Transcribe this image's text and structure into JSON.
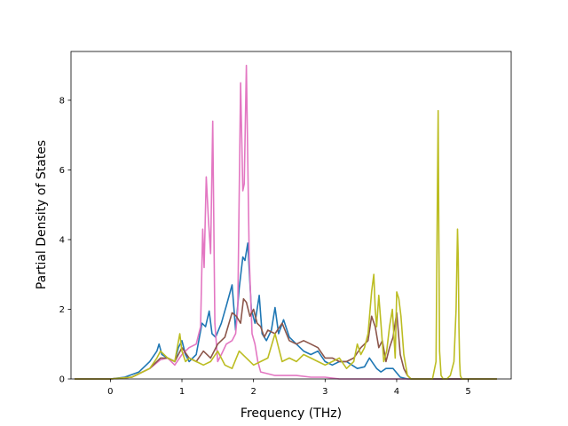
{
  "chart_data": {
    "type": "line",
    "title": "",
    "xlabel": "Frequency (THz)",
    "ylabel": "Partial Density of States",
    "xlim": [
      -0.55,
      5.6
    ],
    "ylim": [
      0,
      9.4
    ],
    "xticks": [
      0,
      1,
      2,
      3,
      4,
      5
    ],
    "yticks": [
      0,
      2,
      4,
      6,
      8
    ],
    "grid": false,
    "legend": "none",
    "series": [
      {
        "color": "#1f77b4",
        "x": [
          -0.5,
          0.0,
          0.2,
          0.4,
          0.55,
          0.65,
          0.68,
          0.72,
          0.8,
          0.9,
          0.95,
          1.0,
          1.05,
          1.1,
          1.2,
          1.28,
          1.33,
          1.38,
          1.42,
          1.47,
          1.55,
          1.62,
          1.7,
          1.75,
          1.8,
          1.85,
          1.88,
          1.92,
          1.97,
          2.02,
          2.08,
          2.12,
          2.18,
          2.25,
          2.3,
          2.35,
          2.42,
          2.5,
          2.6,
          2.7,
          2.8,
          2.9,
          3.0,
          3.1,
          3.2,
          3.3,
          3.45,
          3.55,
          3.62,
          3.67,
          3.72,
          3.78,
          3.85,
          3.95,
          4.05,
          4.15,
          5.4
        ],
        "y": [
          0,
          0,
          0.05,
          0.2,
          0.5,
          0.8,
          1.0,
          0.7,
          0.6,
          0.5,
          0.9,
          1.1,
          0.7,
          0.5,
          0.7,
          1.6,
          1.5,
          1.95,
          1.3,
          1.2,
          1.6,
          2.1,
          2.7,
          1.4,
          2.6,
          3.5,
          3.4,
          3.9,
          2.0,
          1.6,
          2.4,
          1.3,
          1.1,
          1.4,
          2.05,
          1.3,
          1.7,
          1.2,
          1.0,
          0.8,
          0.7,
          0.8,
          0.5,
          0.4,
          0.5,
          0.5,
          0.3,
          0.35,
          0.6,
          0.45,
          0.3,
          0.2,
          0.3,
          0.3,
          0.05,
          0,
          0
        ]
      },
      {
        "color": "#e377c2",
        "x": [
          -0.5,
          0.0,
          0.3,
          0.55,
          0.7,
          0.8,
          0.9,
          1.0,
          1.1,
          1.2,
          1.26,
          1.29,
          1.31,
          1.34,
          1.37,
          1.4,
          1.43,
          1.46,
          1.5,
          1.55,
          1.62,
          1.7,
          1.75,
          1.78,
          1.82,
          1.85,
          1.87,
          1.9,
          1.94,
          1.98,
          2.02,
          2.06,
          2.1,
          2.2,
          2.3,
          2.4,
          2.6,
          2.8,
          3.0,
          3.2,
          5.4
        ],
        "y": [
          0,
          0,
          0.05,
          0.3,
          0.55,
          0.6,
          0.4,
          0.7,
          0.9,
          1.0,
          1.5,
          4.3,
          3.2,
          5.8,
          4.6,
          3.6,
          7.4,
          1.6,
          0.5,
          0.7,
          1.0,
          1.1,
          1.3,
          2.0,
          8.5,
          5.4,
          5.6,
          9.0,
          3.5,
          1.3,
          1.0,
          0.5,
          0.2,
          0.15,
          0.1,
          0.1,
          0.1,
          0.05,
          0.05,
          0,
          0
        ]
      },
      {
        "color": "#8c564b",
        "x": [
          -0.5,
          0.0,
          0.3,
          0.55,
          0.7,
          0.8,
          0.9,
          1.0,
          1.1,
          1.2,
          1.3,
          1.4,
          1.5,
          1.6,
          1.7,
          1.76,
          1.82,
          1.86,
          1.9,
          1.95,
          2.0,
          2.05,
          2.1,
          2.15,
          2.2,
          2.3,
          2.4,
          2.5,
          2.6,
          2.7,
          2.8,
          2.9,
          3.0,
          3.1,
          3.2,
          3.3,
          3.4,
          3.5,
          3.6,
          3.65,
          3.7,
          3.75,
          3.8,
          3.85,
          3.9,
          3.95,
          4.0,
          4.05,
          4.1,
          4.15,
          4.2,
          5.4
        ],
        "y": [
          0,
          0,
          0.05,
          0.3,
          0.6,
          0.6,
          0.5,
          0.9,
          0.6,
          0.5,
          0.8,
          0.6,
          1.0,
          1.2,
          1.9,
          1.8,
          1.6,
          2.3,
          2.2,
          1.8,
          2.0,
          1.6,
          1.5,
          1.2,
          1.4,
          1.3,
          1.6,
          1.1,
          1.0,
          1.1,
          1.0,
          0.9,
          0.6,
          0.6,
          0.5,
          0.5,
          0.6,
          0.9,
          1.1,
          1.8,
          1.5,
          0.9,
          1.1,
          0.5,
          0.9,
          1.2,
          1.9,
          0.7,
          0.3,
          0.1,
          0,
          0
        ]
      },
      {
        "color": "#bcbd22",
        "x": [
          -0.5,
          0.0,
          0.3,
          0.55,
          0.65,
          0.7,
          0.8,
          0.9,
          0.97,
          1.0,
          1.05,
          1.1,
          1.2,
          1.3,
          1.4,
          1.5,
          1.6,
          1.7,
          1.8,
          1.9,
          2.0,
          2.1,
          2.2,
          2.3,
          2.4,
          2.5,
          2.6,
          2.7,
          2.8,
          2.9,
          3.0,
          3.1,
          3.2,
          3.3,
          3.4,
          3.45,
          3.5,
          3.55,
          3.6,
          3.65,
          3.68,
          3.7,
          3.72,
          3.75,
          3.78,
          3.82,
          3.86,
          3.9,
          3.94,
          3.98,
          4.0,
          4.03,
          4.06,
          4.1,
          4.15,
          4.2,
          4.4,
          4.5,
          4.55,
          4.57,
          4.58,
          4.59,
          4.6,
          4.62,
          4.65,
          4.7,
          4.75,
          4.8,
          4.83,
          4.85,
          4.86,
          4.87,
          4.88,
          4.89,
          4.91,
          4.95,
          5.0,
          5.4
        ],
        "y": [
          0,
          0,
          0.05,
          0.3,
          0.6,
          0.8,
          0.6,
          0.5,
          1.3,
          0.8,
          0.5,
          0.6,
          0.5,
          0.4,
          0.5,
          0.8,
          0.4,
          0.3,
          0.8,
          0.6,
          0.4,
          0.5,
          0.6,
          1.3,
          0.5,
          0.6,
          0.5,
          0.7,
          0.6,
          0.5,
          0.4,
          0.5,
          0.6,
          0.3,
          0.5,
          1.0,
          0.7,
          0.9,
          1.3,
          2.5,
          3.0,
          2.0,
          1.5,
          2.4,
          1.6,
          0.5,
          0.8,
          1.5,
          2.0,
          0.6,
          2.5,
          2.3,
          1.8,
          0.7,
          0.1,
          0,
          0,
          0,
          0.5,
          5.5,
          7.7,
          4.0,
          0.8,
          0.1,
          0,
          0,
          0.1,
          0.5,
          2.0,
          4.3,
          3.5,
          1.5,
          0.5,
          0.1,
          0,
          0,
          0,
          0
        ]
      }
    ]
  }
}
